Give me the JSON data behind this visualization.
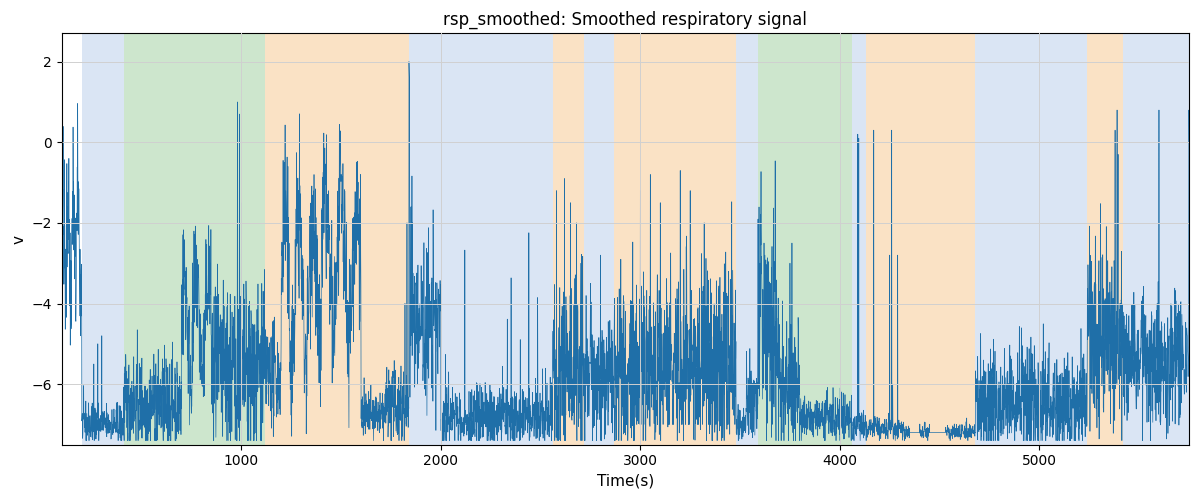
{
  "title": "rsp_smoothed: Smoothed respiratory signal",
  "xlabel": "Time(s)",
  "ylabel": "v",
  "xlim": [
    100,
    5750
  ],
  "ylim": [
    -7.5,
    2.7
  ],
  "signal_color": "#1f6fa8",
  "signal_linewidth": 0.5,
  "background_regions": [
    {
      "xmin": 200,
      "xmax": 410,
      "color": "#aec6e8",
      "alpha": 0.45
    },
    {
      "xmin": 410,
      "xmax": 1120,
      "color": "#90c990",
      "alpha": 0.45
    },
    {
      "xmin": 1120,
      "xmax": 1840,
      "color": "#f5c080",
      "alpha": 0.45
    },
    {
      "xmin": 1840,
      "xmax": 2560,
      "color": "#aec6e8",
      "alpha": 0.45
    },
    {
      "xmin": 2560,
      "xmax": 2720,
      "color": "#f5c080",
      "alpha": 0.45
    },
    {
      "xmin": 2720,
      "xmax": 2870,
      "color": "#aec6e8",
      "alpha": 0.45
    },
    {
      "xmin": 2870,
      "xmax": 3480,
      "color": "#f5c080",
      "alpha": 0.45
    },
    {
      "xmin": 3480,
      "xmax": 3590,
      "color": "#aec6e8",
      "alpha": 0.45
    },
    {
      "xmin": 3590,
      "xmax": 4060,
      "color": "#90c990",
      "alpha": 0.45
    },
    {
      "xmin": 4060,
      "xmax": 4130,
      "color": "#aec6e8",
      "alpha": 0.45
    },
    {
      "xmin": 4130,
      "xmax": 4680,
      "color": "#f5c080",
      "alpha": 0.45
    },
    {
      "xmin": 4680,
      "xmax": 5240,
      "color": "#aec6e8",
      "alpha": 0.45
    },
    {
      "xmin": 5240,
      "xmax": 5420,
      "color": "#f5c080",
      "alpha": 0.45
    },
    {
      "xmin": 5420,
      "xmax": 5750,
      "color": "#aec6e8",
      "alpha": 0.45
    }
  ],
  "yticks": [
    2,
    0,
    -2,
    -4,
    -6
  ],
  "xticks": [
    1000,
    2000,
    3000,
    4000,
    5000
  ],
  "grid_color": "#d0d0d0",
  "grid_linewidth": 0.7,
  "fig_width": 12,
  "fig_height": 5,
  "dpi": 100,
  "seed": 42
}
